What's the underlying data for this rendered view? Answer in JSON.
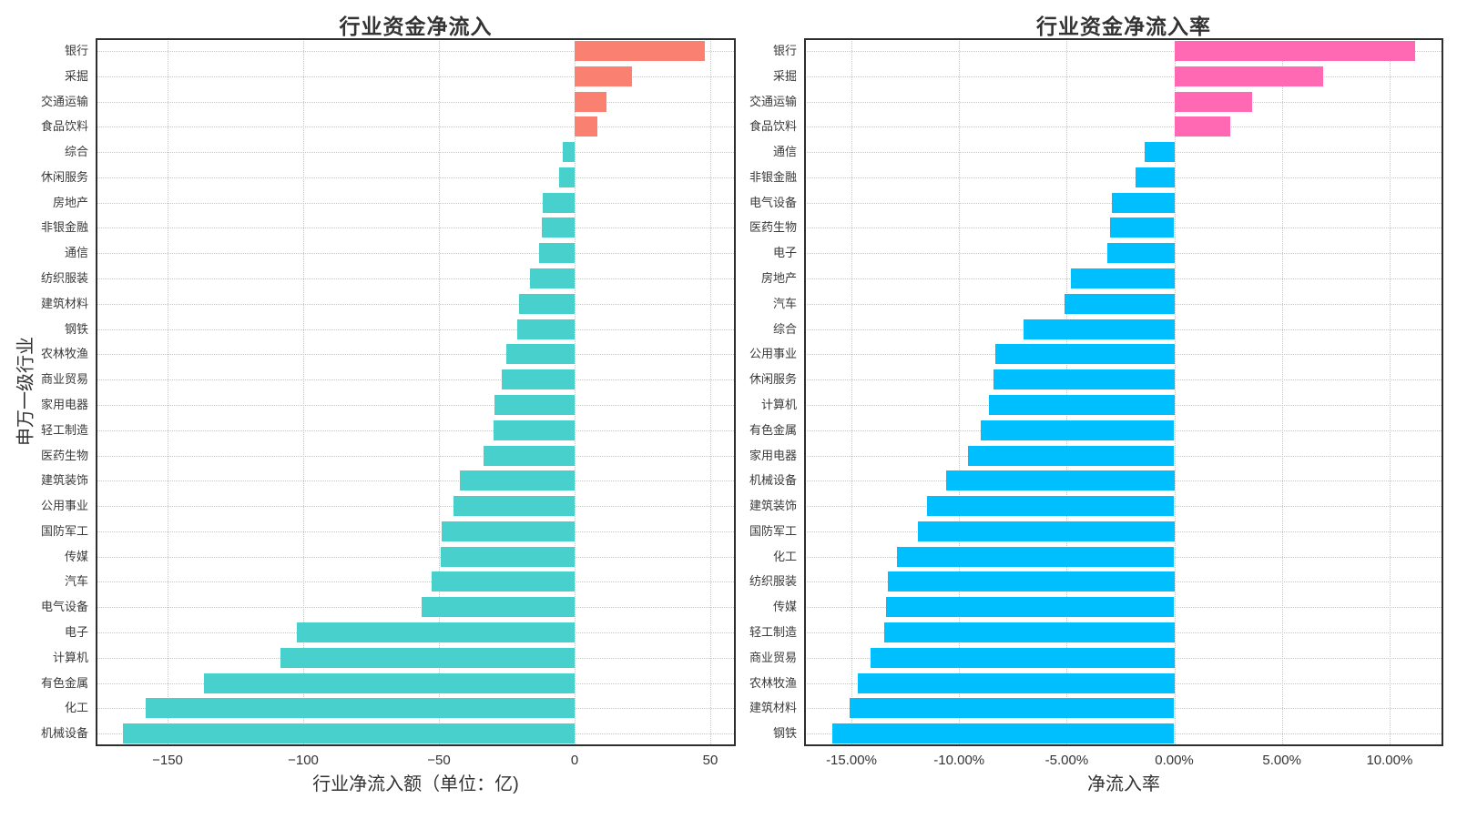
{
  "chart_data": [
    {
      "type": "bar",
      "orientation": "horizontal",
      "title": "行业资金净流入",
      "xlabel": "行业净流入额（单位：亿)",
      "ylabel": "申万一级行业",
      "xlim": [
        -176.5,
        59.4
      ],
      "grid": true,
      "legend": "none",
      "pos_color": "#fa8072",
      "neg_color": "#48d1cc",
      "ticks": [
        {
          "v": -150,
          "label": "−150"
        },
        {
          "v": -100,
          "label": "−100"
        },
        {
          "v": -50,
          "label": "−50"
        },
        {
          "v": 0,
          "label": "0"
        },
        {
          "v": 50,
          "label": "50"
        }
      ],
      "categories": [
        "银行",
        "采掘",
        "交通运输",
        "食品饮料",
        "综合",
        "休闲服务",
        "房地产",
        "非银金融",
        "通信",
        "纺织服装",
        "建筑材料",
        "钢铁",
        "农林牧渔",
        "商业贸易",
        "家用电器",
        "轻工制造",
        "医药生物",
        "建筑装饰",
        "公用事业",
        "国防军工",
        "传媒",
        "汽车",
        "电气设备",
        "电子",
        "计算机",
        "有色金属",
        "化工",
        "机械设备"
      ],
      "values": [
        48,
        21,
        11.6,
        8.3,
        -4.5,
        -5.8,
        -11.9,
        -12.1,
        -13.0,
        -16.3,
        -20.5,
        -21.0,
        -25.3,
        -26.7,
        -29.6,
        -30.0,
        -33.4,
        -42.3,
        -44.5,
        -48.9,
        -49.2,
        -52.6,
        -56.3,
        -102.5,
        -108.5,
        -136.5,
        -158.0,
        -166.5
      ]
    },
    {
      "type": "bar",
      "orientation": "horizontal",
      "title": "行业资金净流入率",
      "xlabel": "净流入率",
      "ylabel": "",
      "xlim": [
        -17.2,
        12.5
      ],
      "grid": true,
      "legend": "none",
      "pos_color": "#ff69b4",
      "neg_color": "#00bfff",
      "ticks": [
        {
          "v": -15,
          "label": "-15.00%"
        },
        {
          "v": -10,
          "label": "-10.00%"
        },
        {
          "v": -5,
          "label": "-5.00%"
        },
        {
          "v": 0,
          "label": "0.00%"
        },
        {
          "v": 5,
          "label": "5.00%"
        },
        {
          "v": 10,
          "label": "10.00%"
        }
      ],
      "categories": [
        "银行",
        "采掘",
        "交通运输",
        "食品饮料",
        "通信",
        "非银金融",
        "电气设备",
        "医药生物",
        "电子",
        "房地产",
        "汽车",
        "综合",
        "公用事业",
        "休闲服务",
        "计算机",
        "有色金属",
        "家用电器",
        "机械设备",
        "建筑装饰",
        "国防军工",
        "化工",
        "纺织服装",
        "传媒",
        "轻工制造",
        "商业贸易",
        "农林牧渔",
        "建筑材料",
        "钢铁"
      ],
      "values": [
        11.2,
        6.9,
        3.6,
        2.6,
        -1.4,
        -1.8,
        -2.9,
        -3.0,
        -3.1,
        -4.8,
        -5.1,
        -7.0,
        -8.3,
        -8.4,
        -8.6,
        -9.0,
        -9.6,
        -10.6,
        -11.5,
        -11.9,
        -12.9,
        -13.3,
        -13.4,
        -13.5,
        -14.1,
        -14.7,
        -15.1,
        -15.9
      ]
    }
  ]
}
